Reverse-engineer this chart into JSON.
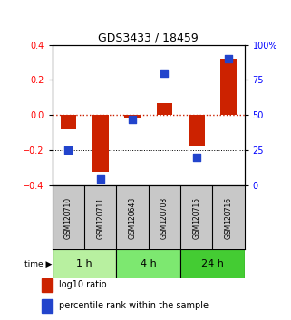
{
  "title": "GDS3433 / 18459",
  "samples": [
    "GSM120710",
    "GSM120711",
    "GSM120648",
    "GSM120708",
    "GSM120715",
    "GSM120716"
  ],
  "log10_ratio": [
    -0.08,
    -0.32,
    -0.02,
    0.07,
    -0.17,
    0.32
  ],
  "percentile_rank": [
    25,
    5,
    47,
    80,
    20,
    90
  ],
  "groups": [
    {
      "label": "1 h",
      "indices": [
        0,
        1
      ],
      "color": "#b8f0a0"
    },
    {
      "label": "4 h",
      "indices": [
        2,
        3
      ],
      "color": "#7de870"
    },
    {
      "label": "24 h",
      "indices": [
        4,
        5
      ],
      "color": "#44cc33"
    }
  ],
  "ylim_left": [
    -0.4,
    0.4
  ],
  "ylim_right": [
    0,
    100
  ],
  "yticks_left": [
    -0.4,
    -0.2,
    0.0,
    0.2,
    0.4
  ],
  "yticks_right": [
    0,
    25,
    50,
    75,
    100
  ],
  "bar_color": "#cc2200",
  "dot_color": "#2244cc",
  "bar_width": 0.5,
  "dot_size": 40,
  "hline_color": "#cc2200",
  "grid_color": "black",
  "sample_bg_color": "#c8c8c8",
  "background_color": "white"
}
